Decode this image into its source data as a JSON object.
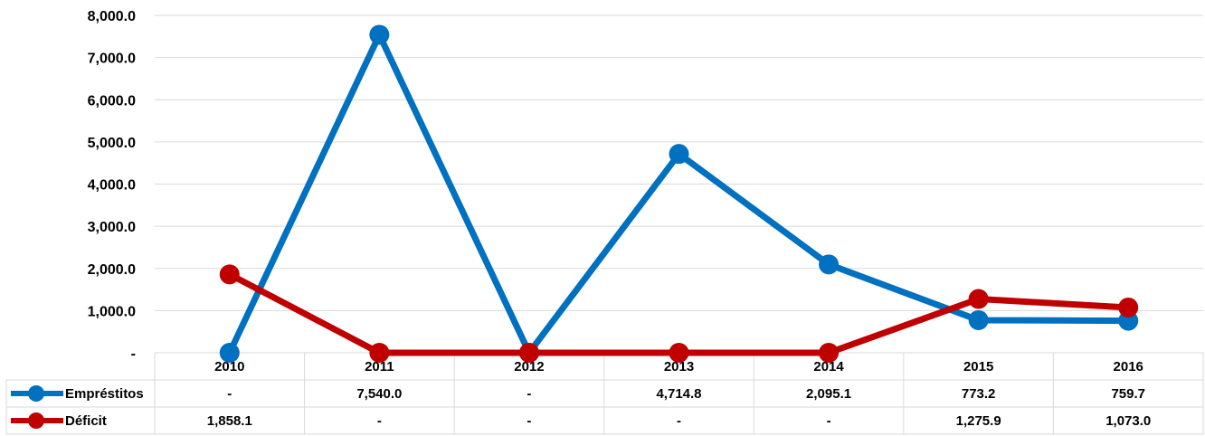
{
  "chart_data": {
    "type": "line",
    "categories": [
      "2010",
      "2011",
      "2012",
      "2013",
      "2014",
      "2015",
      "2016"
    ],
    "y_ticks": [
      {
        "value": 0,
        "label": "-"
      },
      {
        "value": 1000,
        "label": "1,000.0"
      },
      {
        "value": 2000,
        "label": "2,000.0"
      },
      {
        "value": 3000,
        "label": "3,000.0"
      },
      {
        "value": 4000,
        "label": "4,000.0"
      },
      {
        "value": 5000,
        "label": "5,000.0"
      },
      {
        "value": 6000,
        "label": "6,000.0"
      },
      {
        "value": 7000,
        "label": "7,000.0"
      },
      {
        "value": 8000,
        "label": "8,000.0"
      }
    ],
    "ylim": [
      0,
      8000
    ],
    "grid": true,
    "legend": "data-table",
    "series": [
      {
        "name": "Empréstitos",
        "color": "#0070C0",
        "values": [
          0,
          7540.0,
          0,
          4714.8,
          2095.1,
          773.2,
          759.7
        ],
        "labels": [
          "-",
          "7,540.0",
          "-",
          "4,714.8",
          "2,095.1",
          "773.2",
          "759.7"
        ]
      },
      {
        "name": "Déficit",
        "color": "#C00000",
        "values": [
          1858.1,
          0,
          0,
          0,
          0,
          1275.9,
          1073.0
        ],
        "labels": [
          "1,858.1",
          "-",
          "-",
          "-",
          "-",
          "1,275.9",
          "1,073.0"
        ]
      }
    ]
  }
}
